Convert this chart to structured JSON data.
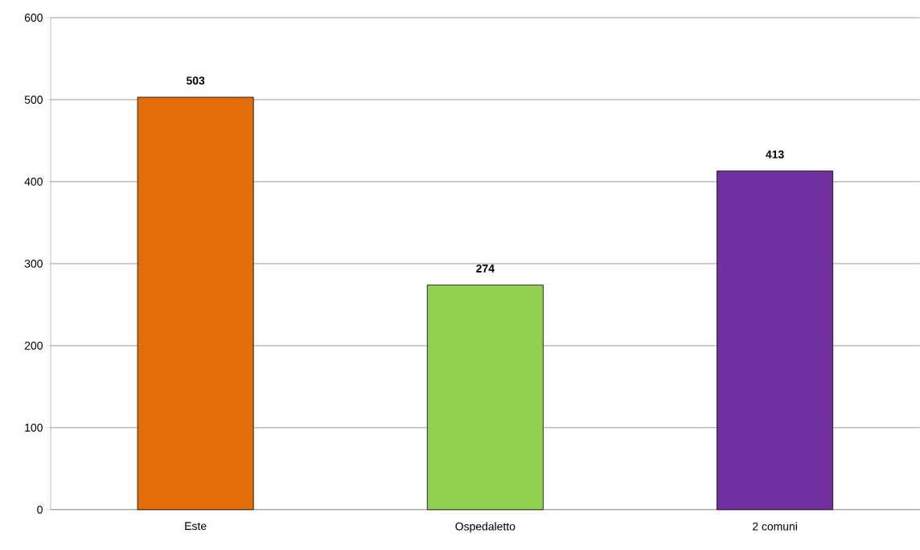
{
  "chart_data": {
    "type": "bar",
    "categories": [
      "Este",
      "Ospedaletto",
      "2 comuni"
    ],
    "values": [
      503,
      274,
      413
    ],
    "colors": [
      "#e36c09",
      "#92d050",
      "#7030a0"
    ],
    "value_labels": [
      "503",
      "274",
      "413"
    ],
    "ylim": [
      0,
      600
    ],
    "yticks": [
      0,
      100,
      200,
      300,
      400,
      500,
      600
    ],
    "grid": "y"
  }
}
